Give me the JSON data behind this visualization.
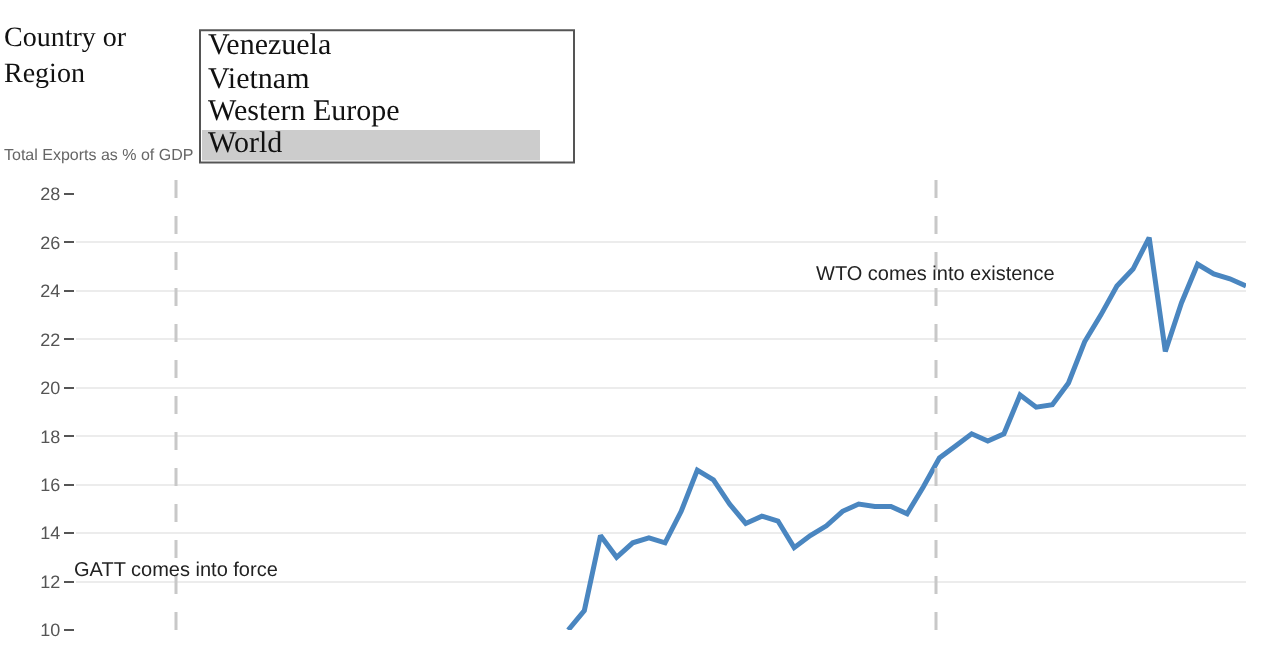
{
  "chart_data": {
    "type": "line",
    "ylabel": "Total Exports as % of GDP",
    "categories": [
      null,
      null,
      null,
      null,
      null,
      null,
      null,
      null,
      null,
      null,
      null,
      null,
      null,
      null,
      null,
      null,
      null,
      null,
      null,
      null,
      null,
      null,
      null,
      null,
      null,
      null,
      null,
      null,
      null,
      null,
      null,
      null,
      null,
      null,
      null,
      null,
      null,
      null,
      null,
      null,
      null,
      null,
      null,
      null,
      null,
      null,
      null,
      null,
      null,
      null,
      null,
      null,
      null,
      null,
      null,
      null,
      null,
      null,
      null,
      null,
      null,
      null,
      null,
      null,
      null,
      null,
      null,
      null,
      null,
      null,
      null,
      null,
      null
    ],
    "series": [
      {
        "color": "#4a86c0",
        "values": [
          null,
          null,
          null,
          null,
          null,
          null,
          null,
          null,
          null,
          null,
          null,
          null,
          null,
          null,
          null,
          null,
          null,
          null,
          null,
          null,
          null,
          null,
          null,
          null,
          null,
          null,
          null,
          null,
          null,
          null,
          10.0,
          10.8,
          13.9,
          13.0,
          13.6,
          13.8,
          13.6,
          14.9,
          16.6,
          16.2,
          15.2,
          14.4,
          14.7,
          14.5,
          13.4,
          13.9,
          14.3,
          14.9,
          15.2,
          15.1,
          15.1,
          14.8,
          15.9,
          17.1,
          17.6,
          18.1,
          17.8,
          18.1,
          19.7,
          19.2,
          19.3,
          20.2,
          21.9,
          23.0,
          24.2,
          24.9,
          26.2,
          21.5,
          23.5,
          25.1,
          24.7,
          24.5,
          24.2
        ]
      }
    ],
    "ylim": [
      10,
      28
    ],
    "yticks": [
      10,
      12,
      14,
      16,
      18,
      20,
      22,
      24,
      26,
      28
    ],
    "grid": "y",
    "annotations": [
      "GATT comes into force",
      "WTO comes into existence",
      "Country or Region",
      "Venezuela",
      "Vietnam",
      "Western Europe",
      "World"
    ]
  }
}
